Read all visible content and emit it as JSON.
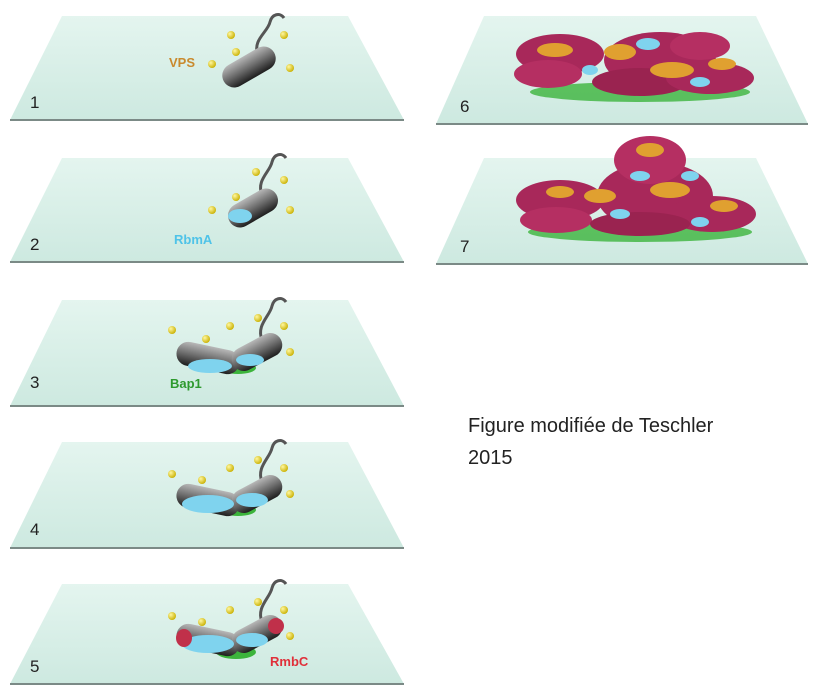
{
  "figure": {
    "panels": [
      {
        "number": "1",
        "label": "VPS",
        "label_color": "#c98a2e"
      },
      {
        "number": "2",
        "label": "RbmA",
        "label_color": "#4fc3e8"
      },
      {
        "number": "3",
        "label": "Bap1",
        "label_color": "#2e9a2e"
      },
      {
        "number": "4",
        "label": ""
      },
      {
        "number": "5",
        "label": "RmbC",
        "label_color": "#e0303a"
      },
      {
        "number": "6",
        "label": ""
      },
      {
        "number": "7",
        "label": ""
      }
    ],
    "caption_line1": "Figure modifiée de Teschler",
    "caption_line2": "2015"
  },
  "colors": {
    "plane": "#d6efe7",
    "plane_edge": "#8a9a96",
    "cell_gray": "#6a6a6a",
    "rbma_blue": "#7fd3ee",
    "bap1_green": "#3cb43c",
    "rbmc_red": "#c0304a",
    "vps_yellow": "#e8d21a",
    "matrix_orange": "#e0a030",
    "matrix_magenta": "#a8285a"
  }
}
